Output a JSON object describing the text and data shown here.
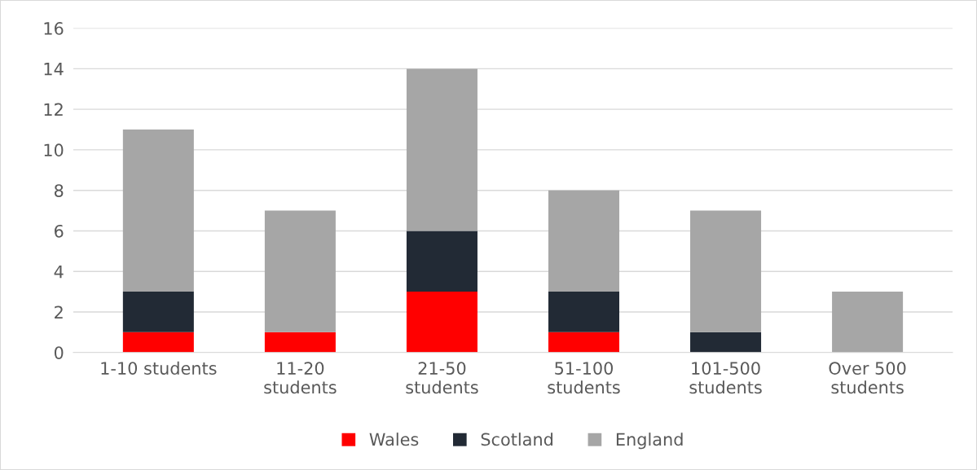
{
  "chart_data": {
    "type": "bar",
    "stacked": true,
    "categories": [
      "1-10 students",
      "11-20\nstudents",
      "21-50\nstudents",
      "51-100\nstudents",
      "101-500\nstudents",
      "Over 500\nstudents"
    ],
    "series": [
      {
        "name": "Wales",
        "color": "#ff0000",
        "values": [
          1,
          1,
          3,
          1,
          0,
          0
        ]
      },
      {
        "name": "Scotland",
        "color": "#222a35",
        "values": [
          2,
          0,
          3,
          2,
          1,
          0
        ]
      },
      {
        "name": "England",
        "color": "#a6a6a6",
        "values": [
          8,
          6,
          8,
          5,
          6,
          3
        ]
      }
    ],
    "ylim": [
      0,
      16
    ],
    "yticks": [
      0,
      2,
      4,
      6,
      8,
      10,
      12,
      14,
      16
    ],
    "grid": "y",
    "legend": "bottom"
  }
}
